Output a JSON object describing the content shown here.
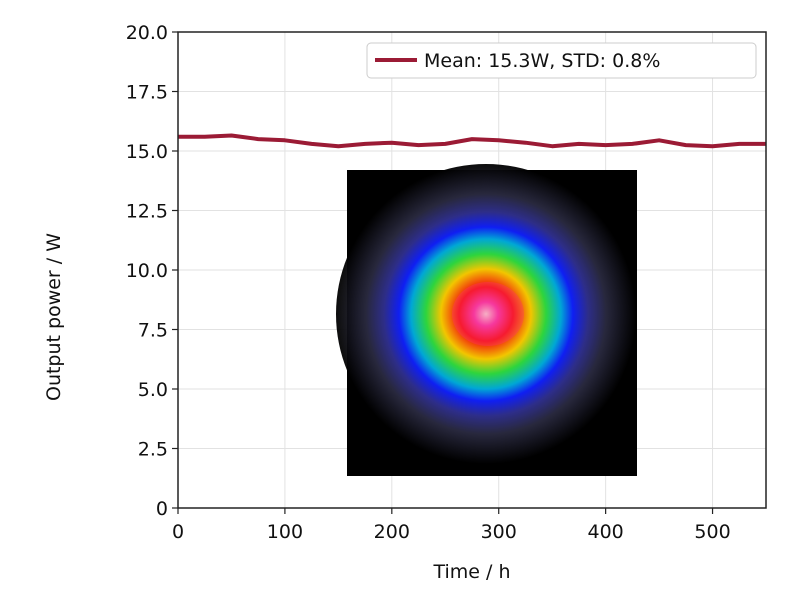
{
  "chart_data": {
    "type": "line",
    "title": "",
    "xlabel": "Time / h",
    "ylabel": "Output power / W",
    "xlim": [
      0,
      550
    ],
    "ylim": [
      0,
      20
    ],
    "xticks": [
      0,
      100,
      200,
      300,
      400,
      500
    ],
    "xtick_labels": [
      "0",
      "100",
      "200",
      "300",
      "400",
      "500"
    ],
    "yticks": [
      0,
      2.5,
      5,
      7.5,
      10,
      12.5,
      15,
      17.5,
      20
    ],
    "ytick_labels": [
      "0",
      "2.5",
      "5.0",
      "7.5",
      "10.0",
      "12.5",
      "15.0",
      "17.5",
      "20.0"
    ],
    "grid": true,
    "legend_position": "top-right",
    "series": [
      {
        "name": "Mean: 15.3W, STD: 0.8%",
        "color": "#9b1b35",
        "x": [
          0,
          25,
          50,
          75,
          100,
          125,
          150,
          175,
          200,
          225,
          250,
          275,
          300,
          325,
          350,
          375,
          400,
          425,
          450,
          475,
          500,
          525,
          550
        ],
        "y": [
          15.6,
          15.6,
          15.65,
          15.5,
          15.45,
          15.3,
          15.2,
          15.3,
          15.35,
          15.25,
          15.3,
          15.5,
          15.45,
          15.35,
          15.2,
          15.3,
          15.25,
          15.3,
          15.45,
          15.25,
          15.2,
          15.3,
          15.3
        ]
      }
    ],
    "inset_image": "laser-beam-profile"
  }
}
